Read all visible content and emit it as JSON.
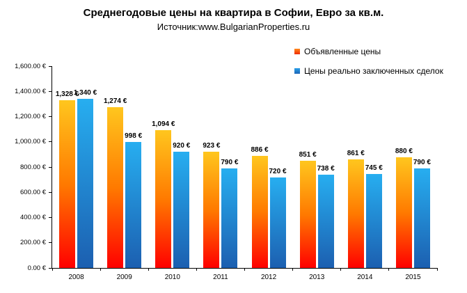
{
  "title": "Среднегодовые цены на квартира в Софии, Евро за кв.м.",
  "subtitle": "Источник:www.BulgarianProperties.ru",
  "legend": [
    {
      "label": "Объявленные цены",
      "marker_gradient": [
        "#FF8A1E",
        "#EE2A00"
      ]
    },
    {
      "label": "Цены реально заключенных сделок",
      "marker_gradient": [
        "#2BA0E8",
        "#1C64B6"
      ]
    }
  ],
  "chart_data": {
    "type": "bar",
    "categories": [
      "2008",
      "2009",
      "2010",
      "2011",
      "2012",
      "2013",
      "2014",
      "2015"
    ],
    "series": [
      {
        "name": "Объявленные цены",
        "values": [
          1328,
          1274,
          1094,
          923,
          886,
          851,
          861,
          880
        ],
        "gradient": [
          "#FFC61E",
          "#FF7A00",
          "#FF0000"
        ]
      },
      {
        "name": "Цены реально заключенных сделок",
        "values": [
          1340,
          998,
          920,
          790,
          720,
          738,
          745,
          790
        ],
        "gradient": [
          "#27AEF0",
          "#1C5FB0"
        ]
      }
    ],
    "title": "Среднегодовые цены на квартира в Софии, Евро за кв.м.",
    "subtitle": "Источник:www.BulgarianProperties.ru",
    "xlabel": "",
    "ylabel": "",
    "ylim": [
      0,
      1600
    ],
    "ytick_step": 200,
    "ytick_format": "#,##0.00 €",
    "value_label_format": "#,##0 €",
    "grid": false,
    "legend_position": "top-right"
  }
}
